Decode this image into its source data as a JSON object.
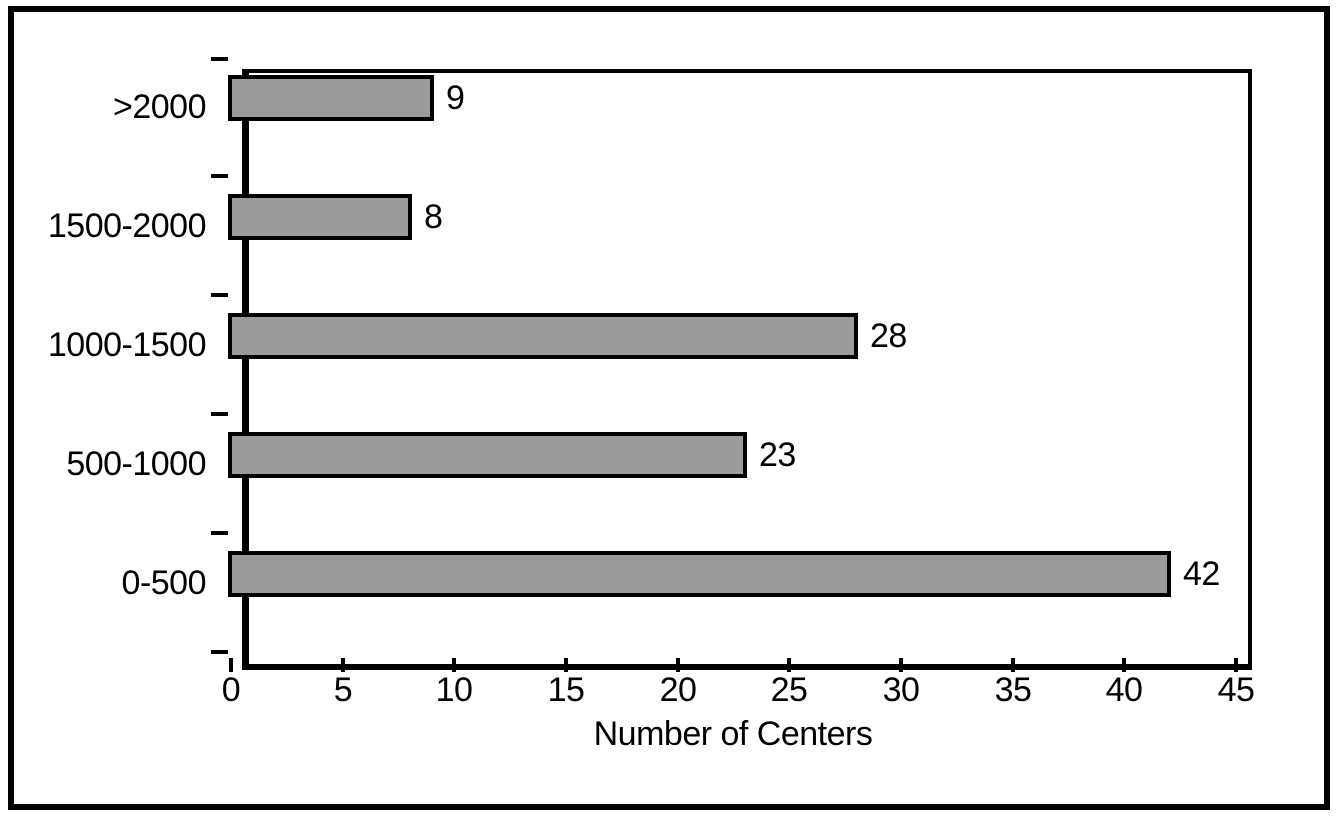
{
  "figure": {
    "background": "#ffffff",
    "frame_color": "#000000"
  },
  "chart_data": {
    "type": "bar",
    "orientation": "horizontal",
    "title": "",
    "xlabel": "Number of Centers",
    "ylabel": "",
    "categories": [
      ">2000",
      "1500-2000",
      "1000-1500",
      "500-1000",
      "0-500"
    ],
    "values": [
      9,
      8,
      28,
      23,
      42
    ],
    "data_labels": [
      "9",
      "8",
      "28",
      "23",
      "42"
    ],
    "xlim": [
      0,
      45
    ],
    "xtick_step": 5,
    "xtick_labels": [
      "0",
      "5",
      "10",
      "15",
      "20",
      "25",
      "30",
      "35",
      "40",
      "45"
    ],
    "grid": false,
    "bar_fill": "#9b9b9b",
    "bar_border": "#000000",
    "axis_color": "#000000",
    "text_color": "#000000"
  }
}
